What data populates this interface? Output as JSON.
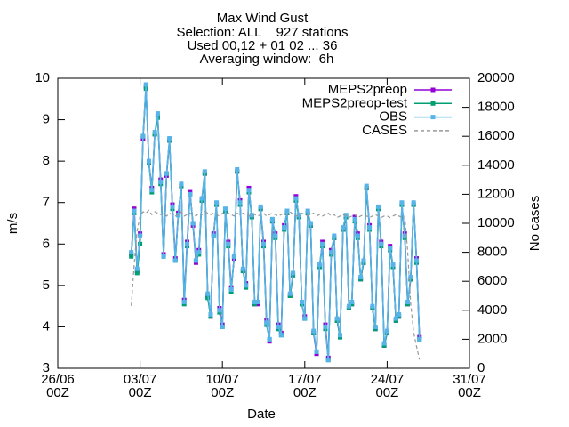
{
  "chart_data": {
    "type": "line",
    "title": [
      "Max Wind Gust",
      "Selection: ALL    927 stations",
      "Used 00,12 + 01 02 ... 36",
      "Averaging window:  6h"
    ],
    "xlabel": "Date",
    "ylabel": "m/s",
    "y2label": "No cases",
    "x": [
      6.25,
      6.5,
      6.75,
      7,
      7.25,
      7.5,
      7.75,
      8,
      8.25,
      8.5,
      8.75,
      9,
      9.25,
      9.5,
      9.75,
      10,
      10.25,
      10.5,
      10.75,
      11,
      11.25,
      11.5,
      11.75,
      12,
      12.25,
      12.5,
      12.75,
      13,
      13.25,
      13.5,
      13.75,
      14,
      14.25,
      14.5,
      14.75,
      15,
      15.25,
      15.5,
      15.75,
      16,
      16.25,
      16.5,
      16.75,
      17,
      17.25,
      17.5,
      17.75,
      18,
      18.25,
      18.5,
      18.75,
      19,
      19.25,
      19.5,
      19.75,
      20,
      20.25,
      20.5,
      20.75,
      21,
      21.25,
      21.5,
      21.75,
      22,
      22.25,
      22.5,
      22.75,
      23,
      23.25,
      23.5,
      23.75,
      24,
      24.25,
      24.5,
      24.75,
      25,
      25.25,
      25.5,
      25.75,
      26,
      26.25,
      26.5,
      26.75,
      27,
      27.25,
      27.5,
      27.75,
      28,
      28.25,
      28.5,
      28.75,
      29,
      29.25,
      29.5,
      29.75,
      30,
      30.25,
      30.5,
      30.75
    ],
    "series": [
      {
        "name": "MEPS2preop",
        "color": "#9400d3",
        "values": [
          5.75,
          6.85,
          5.35,
          6.25,
          8.55,
          9.8,
          7.95,
          7.35,
          8.65,
          9.1,
          7.55,
          5.75,
          7.65,
          8.5,
          6.95,
          5.65,
          6.75,
          7.4,
          4.65,
          6.05,
          7.25,
          6.45,
          5.55,
          5.85,
          7.05,
          7.7,
          4.75,
          4.25,
          6.25,
          6.95,
          4.45,
          4.05,
          6.8,
          6.05,
          4.95,
          5.65,
          7.75,
          7.05,
          5.35,
          5.05,
          7.35,
          6.65,
          4.55,
          4.55,
          6.85,
          6.05,
          4.15,
          3.65,
          6.55,
          6.25,
          4.05,
          3.85,
          6.45,
          6.75,
          4.75,
          5.25,
          7.15,
          6.65,
          4.55,
          4.25,
          6.75,
          6.45,
          3.85,
          3.35,
          5.45,
          6.05,
          4.05,
          3.25,
          5.85,
          6.15,
          4.15,
          3.75,
          6.35,
          6.65,
          4.45,
          4.55,
          6.65,
          6.25,
          5.15,
          5.55,
          7.35,
          6.45,
          4.45,
          3.95,
          6.85,
          6.05,
          3.55,
          3.85,
          5.95,
          5.45,
          4.15,
          4.25,
          6.95,
          6.25,
          4.55,
          5.15,
          6.95,
          5.65,
          3.75
        ]
      },
      {
        "name": "MEPS2preop-test",
        "color": "#009e73",
        "values": [
          5.7,
          6.75,
          5.3,
          6.0,
          8.6,
          9.75,
          7.95,
          7.25,
          8.65,
          9.05,
          7.45,
          5.7,
          7.7,
          8.5,
          6.85,
          5.6,
          6.7,
          7.4,
          4.55,
          5.95,
          7.2,
          6.5,
          5.6,
          5.75,
          7.05,
          7.7,
          4.7,
          4.25,
          6.2,
          6.95,
          4.35,
          4.0,
          6.8,
          5.95,
          4.85,
          5.7,
          7.75,
          6.95,
          5.35,
          4.95,
          7.25,
          6.65,
          4.55,
          4.6,
          6.85,
          5.95,
          4.05,
          3.7,
          6.55,
          6.15,
          3.95,
          3.8,
          6.35,
          6.75,
          4.75,
          5.25,
          7.05,
          6.65,
          4.55,
          4.2,
          6.75,
          6.45,
          3.85,
          3.4,
          5.45,
          5.95,
          3.95,
          3.2,
          5.75,
          6.15,
          4.15,
          3.75,
          6.35,
          6.65,
          4.45,
          4.55,
          6.55,
          6.15,
          5.15,
          5.55,
          7.35,
          6.35,
          4.45,
          3.95,
          6.85,
          5.95,
          3.55,
          3.85,
          5.85,
          5.45,
          4.15,
          4.25,
          6.95,
          6.15,
          4.55,
          5.15,
          6.95,
          5.55,
          3.7
        ]
      },
      {
        "name": "OBS",
        "color": "#56b4e9",
        "values": [
          5.8,
          6.8,
          5.4,
          6.2,
          8.6,
          9.85,
          8.0,
          7.3,
          8.7,
          9.15,
          7.5,
          5.7,
          7.7,
          8.55,
          6.9,
          5.6,
          6.7,
          7.45,
          4.6,
          6.0,
          7.2,
          6.5,
          5.6,
          5.8,
          7.1,
          7.75,
          4.8,
          4.3,
          6.2,
          7.0,
          4.4,
          4.0,
          6.85,
          6.0,
          4.9,
          5.7,
          7.8,
          7.0,
          5.4,
          5.0,
          7.3,
          6.7,
          4.6,
          4.6,
          6.9,
          6.0,
          4.1,
          3.7,
          6.6,
          6.2,
          4.0,
          3.8,
          6.4,
          6.8,
          4.8,
          5.3,
          7.1,
          6.7,
          4.6,
          4.2,
          6.8,
          6.5,
          3.9,
          3.4,
          5.5,
          6.0,
          4.0,
          3.2,
          5.8,
          6.2,
          4.2,
          3.8,
          6.4,
          6.7,
          4.5,
          4.6,
          6.6,
          6.2,
          5.2,
          5.6,
          7.4,
          6.4,
          4.5,
          4.0,
          6.9,
          6.0,
          3.6,
          3.9,
          5.9,
          5.5,
          4.2,
          4.3,
          7.0,
          6.2,
          4.6,
          5.2,
          7.0,
          5.6,
          3.7
        ]
      },
      {
        "name": "CASES",
        "color": "#999999",
        "axis": "y2",
        "dashed": true,
        "values": [
          4300,
          7200,
          9500,
          10500,
          10800,
          10700,
          10900,
          10600,
          10800,
          10700,
          10600,
          10700,
          10500,
          10700,
          10600,
          10500,
          10600,
          10800,
          10500,
          10600,
          10700,
          10600,
          10500,
          10700,
          10600,
          10800,
          10700,
          10600,
          10700,
          10600,
          10500,
          10700,
          10600,
          10700,
          10600,
          10500,
          10700,
          10600,
          10700,
          10600,
          10500,
          10700,
          10600,
          10500,
          10600,
          10700,
          10500,
          10600,
          10700,
          10600,
          10500,
          10600,
          10700,
          10600,
          10800,
          10600,
          10500,
          10600,
          10700,
          10600,
          10500,
          10600,
          10700,
          10500,
          10600,
          10500,
          10600,
          10700,
          10500,
          10600,
          10400,
          10500,
          10600,
          10500,
          10400,
          10500,
          10600,
          10400,
          10500,
          10600,
          10500,
          10400,
          10500,
          10600,
          10500,
          10400,
          10500,
          10500,
          10400,
          10500,
          10600,
          10500,
          10400,
          10500,
          8000,
          4500,
          2500,
          1500,
          600
        ]
      }
    ],
    "xlim": [
      0,
      35
    ],
    "xticks": [
      {
        "value": 0,
        "label": [
          "26/06",
          "00Z"
        ]
      },
      {
        "value": 7,
        "label": [
          "03/07",
          "00Z"
        ]
      },
      {
        "value": 14,
        "label": [
          "10/07",
          "00Z"
        ]
      },
      {
        "value": 21,
        "label": [
          "17/07",
          "00Z"
        ]
      },
      {
        "value": 28,
        "label": [
          "24/07",
          "00Z"
        ]
      },
      {
        "value": 35,
        "label": [
          "31/07",
          "00Z"
        ]
      }
    ],
    "ylim": [
      3,
      10
    ],
    "yticks": [
      3,
      4,
      5,
      6,
      7,
      8,
      9,
      10
    ],
    "y2lim": [
      0,
      20000
    ],
    "y2ticks": [
      0,
      2000,
      4000,
      6000,
      8000,
      10000,
      12000,
      14000,
      16000,
      18000,
      20000
    ],
    "legend": "top right",
    "grid": false
  }
}
